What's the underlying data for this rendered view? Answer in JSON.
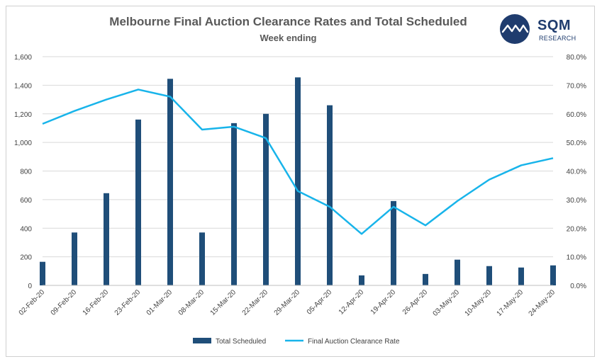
{
  "header": {
    "title": "Melbourne Final Auction Clearance Rates and Total Scheduled",
    "subtitle": "Week ending"
  },
  "logo": {
    "brand": "SQM",
    "sub": "RESEARCH",
    "icon": "sqm-wave-icon",
    "color": "#1f3c6e"
  },
  "chart_data": {
    "type": "bar",
    "title": "Melbourne Final Auction Clearance Rates and Total Scheduled",
    "xlabel": "Week ending",
    "ylabel": "",
    "categories": [
      "02-Feb-20",
      "09-Feb-20",
      "16-Feb-20",
      "23-Feb-20",
      "01-Mar-20",
      "08-Mar-20",
      "15-Mar-20",
      "22-Mar-20",
      "29-Mar-20",
      "05-Apr-20",
      "12-Apr-20",
      "19-Apr-20",
      "26-Apr-20",
      "03-May-20",
      "10-May-20",
      "17-May-20",
      "24-May-20"
    ],
    "ylim": [
      0,
      1600
    ],
    "y_ticks": [
      "0",
      "200",
      "400",
      "600",
      "800",
      "1,000",
      "1,200",
      "1,400",
      "1,600"
    ],
    "y2lim": [
      0,
      80
    ],
    "y2_ticks": [
      "0.0%",
      "10.0%",
      "20.0%",
      "30.0%",
      "40.0%",
      "50.0%",
      "60.0%",
      "70.0%",
      "80.0%"
    ],
    "series": [
      {
        "name": "Total Scheduled",
        "type": "bar",
        "axis": "left",
        "color": "#1f4e79",
        "values": [
          165,
          370,
          645,
          1160,
          1445,
          370,
          1135,
          1200,
          1455,
          1260,
          70,
          590,
          80,
          180,
          135,
          125,
          140
        ]
      },
      {
        "name": "Final Auction Clearance Rate",
        "type": "line",
        "axis": "right",
        "color": "#18b4ea",
        "values": [
          56.5,
          61.0,
          65.0,
          68.5,
          66.0,
          54.5,
          55.5,
          51.5,
          33.0,
          27.5,
          18.0,
          27.5,
          21.0,
          29.5,
          37.0,
          42.0,
          44.5
        ]
      }
    ],
    "legend": "bottom-center",
    "grid": true
  }
}
